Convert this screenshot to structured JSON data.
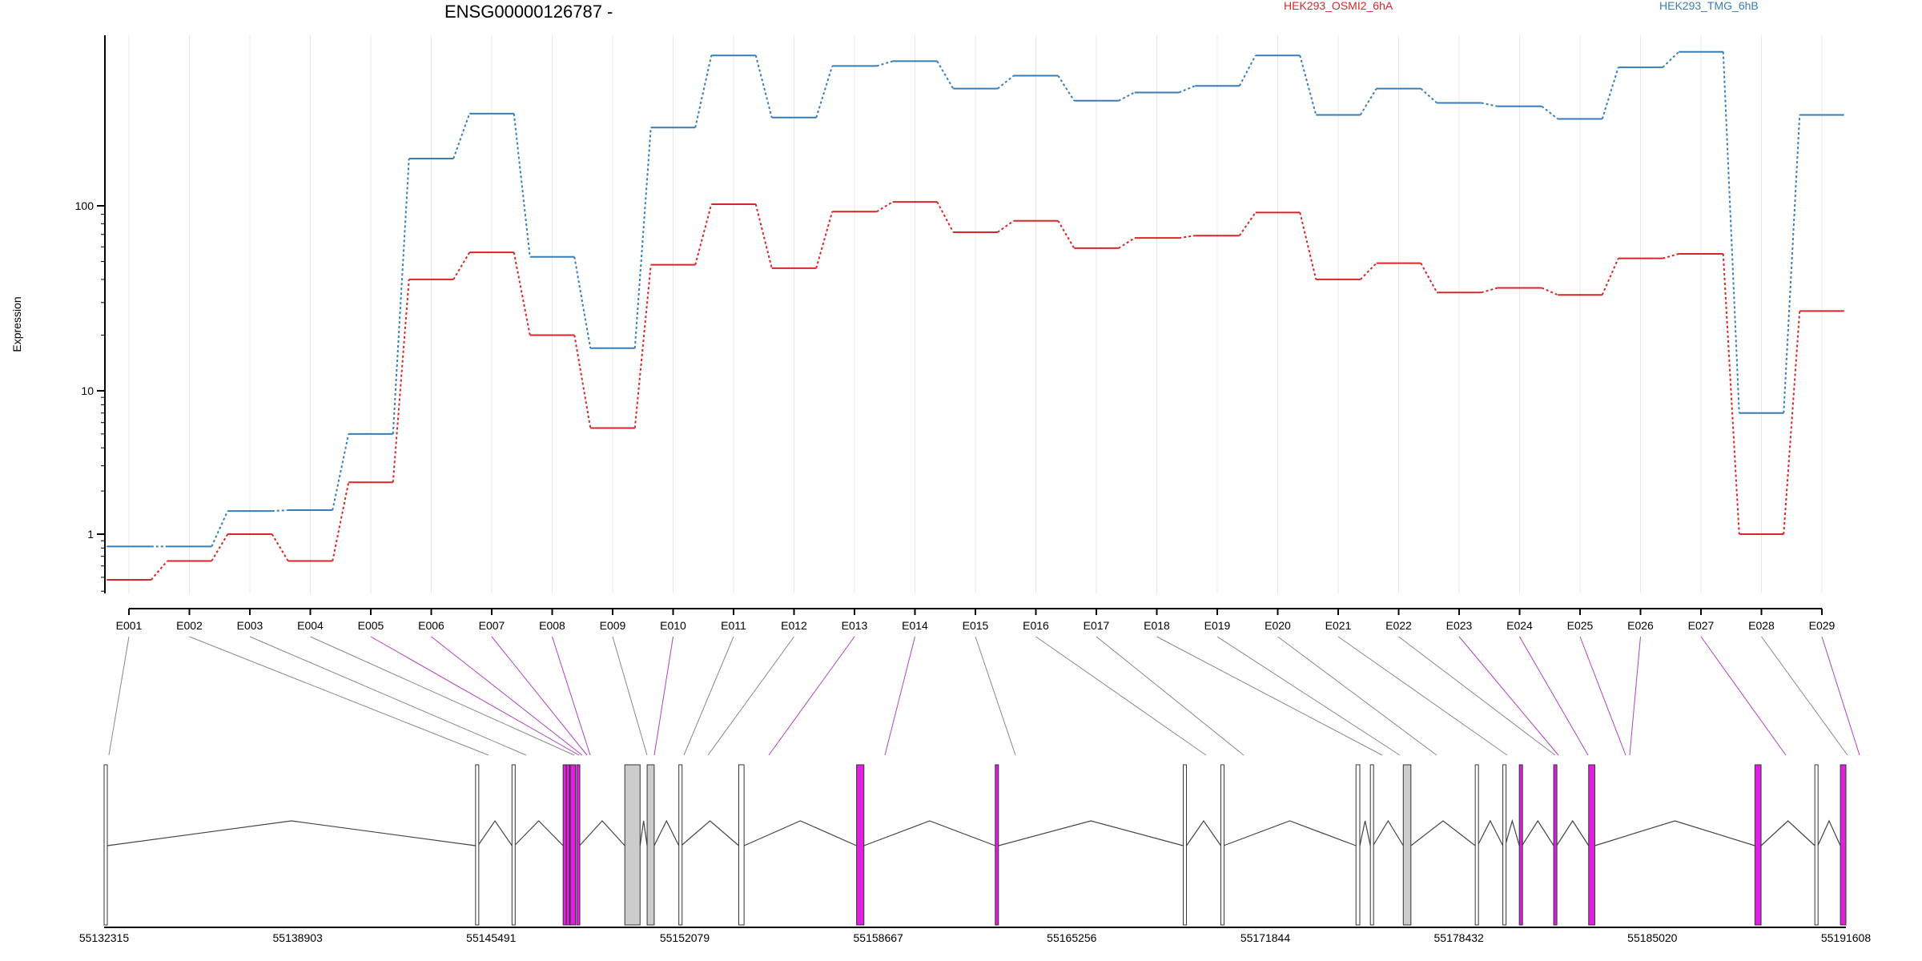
{
  "chart_data": {
    "type": "line",
    "title": "ENSG00000126787 -",
    "ylabel": "Expression",
    "yscale": "log",
    "ylim": [
      0.4,
      900
    ],
    "yticks": [
      1,
      10,
      100
    ],
    "ytick_labels": [
      "1",
      "10",
      "100"
    ],
    "categories": [
      "E001",
      "E002",
      "E003",
      "E004",
      "E005",
      "E006",
      "E007",
      "E008",
      "E009",
      "E010",
      "E011",
      "E012",
      "E013",
      "E014",
      "E015",
      "E016",
      "E017",
      "E018",
      "E019",
      "E020",
      "E021",
      "E022",
      "E023",
      "E024",
      "E025",
      "E026",
      "E027",
      "E028",
      "E029"
    ],
    "series": [
      {
        "name": "HEK293_OSMI2_6hA",
        "color": "#d62728",
        "values": [
          0.48,
          0.65,
          1.0,
          0.65,
          2.3,
          40,
          56,
          20,
          5.5,
          48,
          102,
          46,
          93,
          105,
          72,
          83,
          59,
          67,
          69,
          92,
          40,
          49,
          34,
          36,
          33,
          52,
          55,
          1.0,
          27
        ]
      },
      {
        "name": "HEK293_TMG_6hB",
        "color": "#377eb8",
        "values": [
          0.82,
          0.82,
          1.45,
          1.47,
          5.0,
          180,
          315,
          53,
          17,
          265,
          650,
          300,
          570,
          605,
          430,
          505,
          370,
          410,
          445,
          650,
          310,
          430,
          360,
          345,
          295,
          560,
          680,
          7.0,
          310
        ]
      }
    ],
    "grid": true,
    "gene_model": {
      "coord_labels": [
        "55132315",
        "55138903",
        "55145491",
        "55152079",
        "55158667",
        "55165256",
        "55171844",
        "55178432",
        "55185020",
        "55191608"
      ],
      "exon_highlight_color": "#e020e0",
      "exon_plain_color": "#cccccc"
    }
  }
}
